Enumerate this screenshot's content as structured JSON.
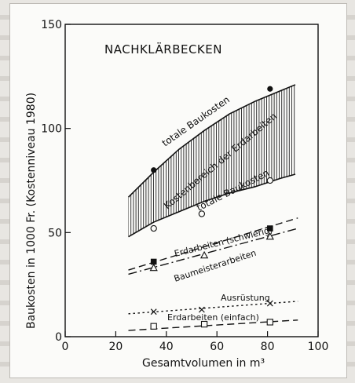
{
  "chart_data": {
    "type": "line",
    "title": "NACHKLÄRBECKEN",
    "xlabel": "Gesamtvolumen  in  m³",
    "ylabel": "Baukosten  in  1000 Fr.  (Kostenniveau 1980)",
    "xlim": [
      0,
      100
    ],
    "ylim": [
      0,
      150
    ],
    "x_ticks": [
      "0",
      "20",
      "40",
      "60",
      "80",
      "100"
    ],
    "y_ticks": [
      "0",
      "50",
      "100",
      "150"
    ],
    "grid": false,
    "band": {
      "label": "Kostenbereich der Erdarbeiten",
      "upper": {
        "x": [
          25,
          35,
          45,
          55,
          65,
          75,
          85,
          91
        ],
        "y": [
          67,
          79,
          90,
          99,
          107,
          113,
          118,
          121
        ]
      },
      "lower": {
        "x": [
          25,
          35,
          45,
          55,
          65,
          75,
          85,
          91
        ],
        "y": [
          48,
          55,
          60,
          65,
          69,
          72,
          76,
          78
        ]
      }
    },
    "series": [
      {
        "name": "totale Baukosten",
        "style": "solid",
        "marker": "filled-circle",
        "line": {
          "x": [
            25,
            35,
            45,
            55,
            65,
            75,
            85,
            91
          ],
          "y": [
            67,
            79,
            90,
            99,
            107,
            113,
            118,
            121
          ]
        },
        "points": {
          "x": [
            35,
            81
          ],
          "y": [
            80,
            119
          ]
        }
      },
      {
        "name": "totale Baukosten",
        "style": "solid",
        "marker": "open-circle",
        "line": {
          "x": [
            25,
            35,
            45,
            55,
            65,
            75,
            85,
            91
          ],
          "y": [
            48,
            55,
            60,
            65,
            69,
            72,
            76,
            78
          ]
        },
        "points": {
          "x": [
            35,
            54,
            81
          ],
          "y": [
            52,
            59,
            75
          ]
        }
      },
      {
        "name": "Erdarbeiten (schwierig)",
        "style": "dash",
        "marker": "filled-square",
        "line": {
          "x": [
            25,
            92
          ],
          "y": [
            32,
            57
          ]
        },
        "points": {
          "x": [
            35,
            81
          ],
          "y": [
            36,
            52
          ]
        }
      },
      {
        "name": "Baumeisterarbeiten",
        "style": "dashdot",
        "marker": "open-triangle",
        "line": {
          "x": [
            25,
            92
          ],
          "y": [
            30,
            52
          ]
        },
        "points": {
          "x": [
            35,
            55,
            81
          ],
          "y": [
            33,
            39,
            48
          ]
        }
      },
      {
        "name": "Ausrüstung",
        "style": "dot",
        "marker": "cross",
        "line": {
          "x": [
            25,
            92
          ],
          "y": [
            11,
            17
          ]
        },
        "points": {
          "x": [
            35,
            54,
            81
          ],
          "y": [
            12,
            13,
            16
          ]
        }
      },
      {
        "name": "Erdarbeiten (einfach)",
        "style": "dash",
        "marker": "open-square",
        "line": {
          "x": [
            25,
            92
          ],
          "y": [
            3,
            8
          ]
        },
        "points": {
          "x": [
            35,
            55,
            81
          ],
          "y": [
            5,
            6,
            7
          ]
        }
      }
    ]
  }
}
